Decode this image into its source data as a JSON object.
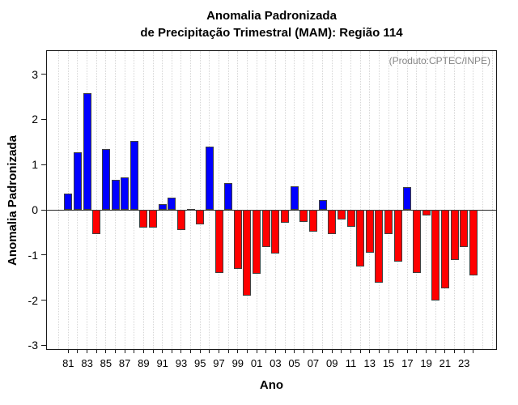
{
  "chart_data": {
    "type": "bar",
    "title_lines": [
      "Anomalia Padronizada",
      "de Precipitação Trimestral (MAM): Região 114"
    ],
    "annotation": "(Produto:CPTEC/INPE)",
    "xlabel": "Ano",
    "ylabel": "Anomalia Padronizada",
    "y_ticks": [
      3,
      2,
      1,
      0,
      -1,
      -2,
      -3
    ],
    "ylim": [
      -3.1,
      3.5
    ],
    "grid": "vertical-dotted-per-year",
    "legend": "none",
    "x_tick_labels": [
      "81",
      "83",
      "85",
      "87",
      "89",
      "91",
      "93",
      "95",
      "97",
      "99",
      "01",
      "03",
      "05",
      "07",
      "09",
      "11",
      "13",
      "15",
      "17",
      "19",
      "21",
      "23"
    ],
    "categories": [
      1981,
      1982,
      1983,
      1984,
      1985,
      1986,
      1987,
      1988,
      1989,
      1990,
      1991,
      1992,
      1993,
      1994,
      1995,
      1996,
      1997,
      1998,
      1999,
      2000,
      2001,
      2002,
      2003,
      2004,
      2005,
      2006,
      2007,
      2008,
      2009,
      2010,
      2011,
      2012,
      2013,
      2014,
      2015,
      2016,
      2017,
      2018,
      2019,
      2020,
      2021,
      2022,
      2023,
      2024
    ],
    "values": [
      0.35,
      1.28,
      2.58,
      -0.53,
      1.34,
      0.66,
      0.72,
      1.52,
      -0.4,
      -0.4,
      0.12,
      0.27,
      -0.44,
      0.0,
      -0.33,
      1.39,
      -1.39,
      0.6,
      -1.31,
      -1.9,
      -1.41,
      -0.82,
      -0.96,
      -0.29,
      0.52,
      -0.27,
      -0.48,
      0.21,
      -0.54,
      -0.21,
      -0.37,
      -1.25,
      -0.95,
      -1.62,
      -0.53,
      -1.15,
      0.5,
      -1.4,
      -0.12,
      -2.0,
      -1.74,
      -1.12,
      -0.82,
      -1.45
    ],
    "colors": {
      "positive": "#0000FF",
      "negative": "#FF0000",
      "bar_border": "#3f3f3f",
      "annotation": "#878787",
      "axis": "#1a1a1a",
      "grid": "#d6d6d6"
    }
  }
}
